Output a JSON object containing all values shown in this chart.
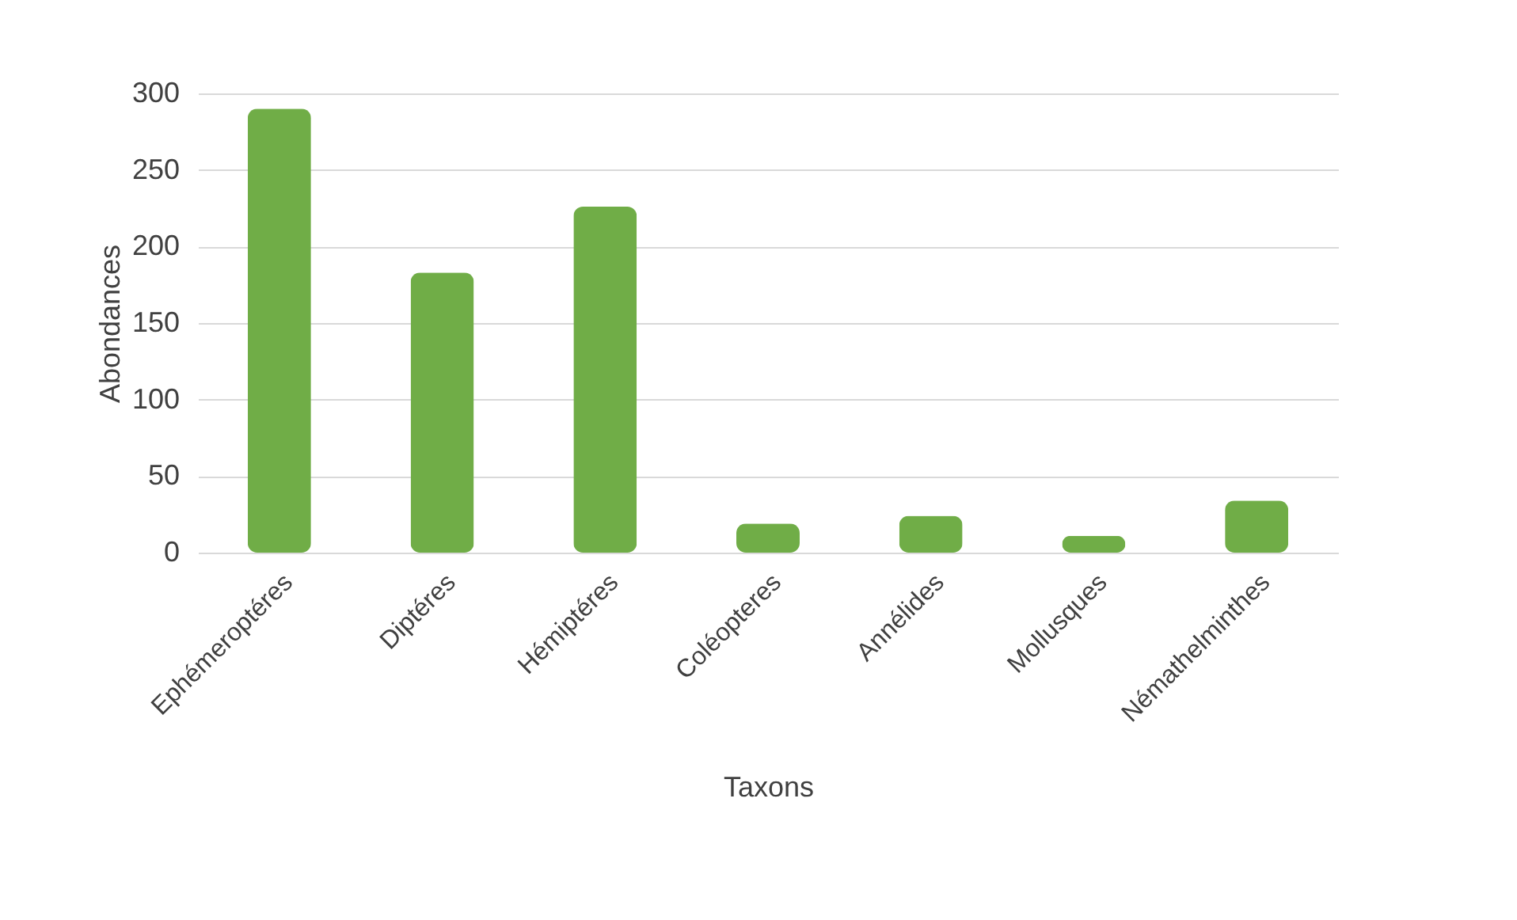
{
  "chart_data": {
    "type": "bar",
    "xlabel": "Taxons",
    "ylabel": "Abondances",
    "categories": [
      "Ephémeroptéres",
      "Diptéres",
      "Hémiptéres",
      "Coléopteres",
      "Annélides",
      "Mollusques",
      "Némathelminthes"
    ],
    "values": [
      290,
      183,
      226,
      19,
      24,
      11,
      34
    ],
    "color": "#70ad47",
    "ylim": [
      0,
      300
    ],
    "yticks": [
      0,
      50,
      100,
      150,
      200,
      250,
      300
    ],
    "grid": "y"
  }
}
